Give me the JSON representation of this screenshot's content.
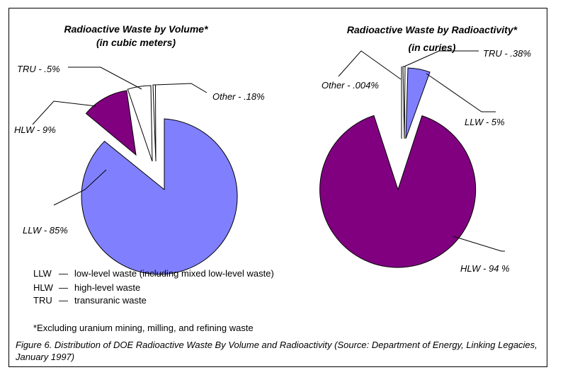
{
  "chart_data": [
    {
      "type": "pie",
      "title": "Radioactive Waste by Volume*",
      "subtitle": "(in cubic meters)",
      "slices": [
        {
          "label": "LLW - 85%",
          "value": 85,
          "color": "#8080ff"
        },
        {
          "label": "HLW - 9%",
          "value": 9,
          "color": "#800080"
        },
        {
          "label": "TRU - .5%",
          "value": 0.5,
          "color": "#ffffff"
        },
        {
          "label": "Other - .18%",
          "value": 0.18,
          "color": "#ffffff"
        }
      ]
    },
    {
      "type": "pie",
      "title": "Radioactive Waste by Radioactivity*",
      "subtitle": "(in curies)",
      "slices": [
        {
          "label": "HLW - 94 %",
          "value": 94,
          "color": "#800080"
        },
        {
          "label": "LLW - 5%",
          "value": 5,
          "color": "#8080ff"
        },
        {
          "label": "TRU - .38%",
          "value": 0.38,
          "color": "#ffffff"
        },
        {
          "label": "Other - .004%",
          "value": 0.004,
          "color": "#ffffff"
        }
      ]
    }
  ],
  "legend": [
    {
      "abbr": "LLW",
      "desc": "low-level waste (including mixed low-level waste)"
    },
    {
      "abbr": "HLW",
      "desc": "high-level waste"
    },
    {
      "abbr": "TRU",
      "desc": "transuranic waste"
    }
  ],
  "legend_dash": "—",
  "footnote": "*Excluding uranium mining, milling, and refining waste",
  "caption": "Figure 6. Distribution of DOE Radioactive Waste By Volume and Radioactivity (Source: Department of Energy, Linking Legacies, January 1997)"
}
